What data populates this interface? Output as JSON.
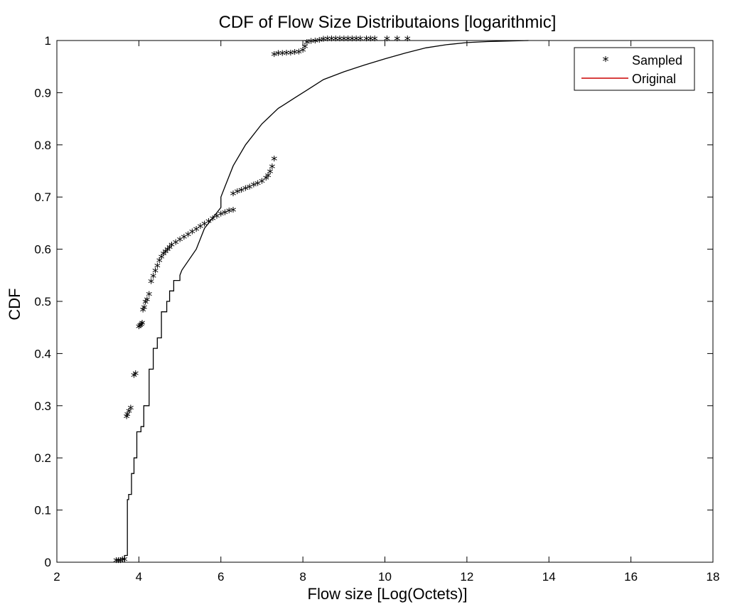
{
  "chart_data": {
    "type": "line",
    "title": "CDF of Flow Size Distributaions [logarithmic]",
    "xlabel": "Flow size [Log(Octets)]",
    "ylabel": "CDF",
    "xlim": [
      2,
      18
    ],
    "ylim": [
      0,
      1
    ],
    "x_ticks": [
      2,
      4,
      6,
      8,
      10,
      12,
      14,
      16,
      18
    ],
    "y_ticks": [
      0,
      0.1,
      0.2,
      0.3,
      0.4,
      0.5,
      0.6,
      0.7,
      0.8,
      0.9,
      1
    ],
    "grid": false,
    "legend_position": "top-right",
    "legend": [
      {
        "label": "Sampled",
        "symbol": "*",
        "color": "#3333cc"
      },
      {
        "label": "Original",
        "symbol": "line",
        "color": "#cc0000"
      }
    ],
    "series": [
      {
        "name": "Original",
        "style": "line",
        "color": "#000000",
        "x": [
          3.65,
          3.65,
          3.72,
          3.72,
          3.75,
          3.75,
          3.82,
          3.82,
          3.88,
          3.88,
          3.95,
          3.95,
          4.05,
          4.05,
          4.12,
          4.12,
          4.25,
          4.25,
          4.35,
          4.35,
          4.45,
          4.45,
          4.55,
          4.55,
          4.68,
          4.68,
          4.75,
          4.75,
          4.85,
          4.85,
          5.0,
          5.0,
          5.05,
          5.4,
          5.6,
          5.8,
          6.0,
          6.0,
          6.1,
          6.3,
          6.6,
          7.0,
          7.4,
          7.5,
          7.8,
          8.2,
          8.5,
          9.0,
          9.5,
          10.0,
          10.5,
          11.0,
          11.5,
          12.0,
          12.5,
          13.0,
          13.5
        ],
        "y": [
          0,
          0.013,
          0.013,
          0.12,
          0.12,
          0.13,
          0.13,
          0.17,
          0.17,
          0.2,
          0.2,
          0.25,
          0.25,
          0.26,
          0.26,
          0.3,
          0.3,
          0.37,
          0.37,
          0.41,
          0.41,
          0.43,
          0.43,
          0.48,
          0.48,
          0.5,
          0.5,
          0.52,
          0.52,
          0.54,
          0.54,
          0.55,
          0.56,
          0.6,
          0.64,
          0.66,
          0.68,
          0.7,
          0.72,
          0.76,
          0.8,
          0.84,
          0.87,
          0.875,
          0.89,
          0.91,
          0.925,
          0.94,
          0.953,
          0.965,
          0.976,
          0.986,
          0.992,
          0.996,
          0.998,
          0.999,
          1.0
        ]
      },
      {
        "name": "Sampled",
        "style": "marker",
        "marker": "*",
        "color": "#000000",
        "x": [
          3.45,
          3.5,
          3.55,
          3.6,
          3.65,
          3.7,
          3.72,
          3.76,
          3.8,
          3.88,
          3.92,
          4.0,
          4.03,
          4.06,
          4.08,
          4.1,
          4.13,
          4.16,
          4.2,
          4.25,
          4.3,
          4.35,
          4.4,
          4.45,
          4.5,
          4.55,
          4.6,
          4.65,
          4.7,
          4.75,
          4.8,
          4.9,
          5.0,
          5.1,
          5.2,
          5.3,
          5.4,
          5.5,
          5.6,
          5.7,
          5.8,
          5.9,
          6.0,
          6.1,
          6.2,
          6.3,
          6.3,
          6.4,
          6.5,
          6.6,
          6.7,
          6.8,
          6.9,
          7.0,
          7.1,
          7.15,
          7.2,
          7.25,
          7.3,
          7.3,
          7.4,
          7.5,
          7.6,
          7.7,
          7.8,
          7.9,
          8.0,
          8.05,
          8.1,
          8.2,
          8.3,
          8.4,
          8.5,
          8.6,
          8.7,
          8.8,
          8.9,
          9.0,
          9.1,
          9.2,
          9.3,
          9.4,
          9.55,
          9.65,
          9.75,
          10.05,
          10.3,
          10.55
        ],
        "y": [
          0.0,
          0.0,
          0.0,
          0.002,
          0.002,
          0.276,
          0.28,
          0.286,
          0.292,
          0.355,
          0.358,
          0.448,
          0.45,
          0.452,
          0.455,
          0.48,
          0.485,
          0.495,
          0.5,
          0.51,
          0.535,
          0.545,
          0.555,
          0.565,
          0.575,
          0.582,
          0.588,
          0.592,
          0.596,
          0.6,
          0.605,
          0.61,
          0.615,
          0.62,
          0.625,
          0.63,
          0.635,
          0.64,
          0.645,
          0.65,
          0.655,
          0.66,
          0.664,
          0.667,
          0.67,
          0.672,
          0.703,
          0.707,
          0.71,
          0.713,
          0.716,
          0.72,
          0.723,
          0.727,
          0.733,
          0.738,
          0.745,
          0.755,
          0.77,
          0.97,
          0.972,
          0.972,
          0.973,
          0.973,
          0.974,
          0.975,
          0.978,
          0.985,
          0.993,
          0.995,
          0.996,
          0.997,
          0.999,
          1.0,
          1.0,
          1.0,
          1.0,
          1.0,
          1.0,
          1.0,
          1.0,
          1.0,
          1.0,
          1.0,
          1.0,
          1.0,
          1.0,
          1.0
        ]
      }
    ]
  }
}
